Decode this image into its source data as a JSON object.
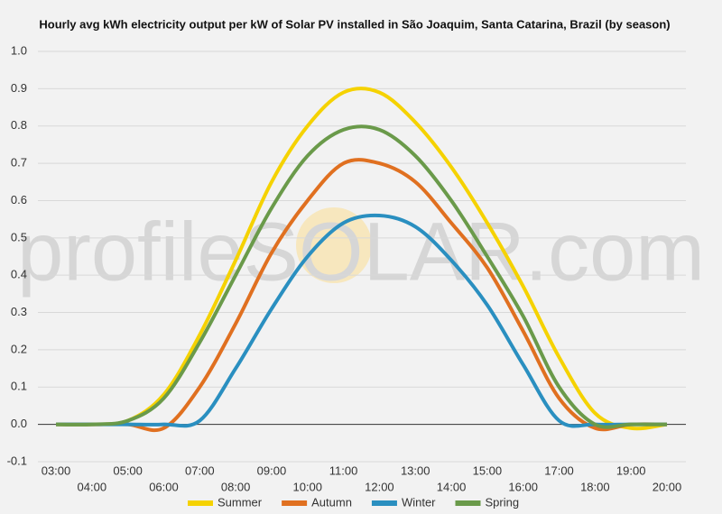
{
  "chart_data": {
    "type": "line",
    "title": "Hourly avg kWh electricity output per kW of Solar PV installed in São Joaquim, Santa Catarina, Brazil (by season)",
    "watermark": "profileSOLAR.com",
    "categories": [
      "03:00",
      "04:00",
      "05:00",
      "06:00",
      "07:00",
      "08:00",
      "09:00",
      "10:00",
      "11:00",
      "12:00",
      "13:00",
      "14:00",
      "15:00",
      "16:00",
      "17:00",
      "18:00",
      "19:00",
      "20:00"
    ],
    "series": [
      {
        "name": "Summer",
        "color": "#f5d200",
        "values": [
          0,
          0,
          0.01,
          0.08,
          0.24,
          0.44,
          0.65,
          0.8,
          0.89,
          0.89,
          0.81,
          0.69,
          0.54,
          0.37,
          0.18,
          0.03,
          -0.01,
          0
        ]
      },
      {
        "name": "Autumn",
        "color": "#e07020",
        "values": [
          0,
          0,
          0,
          -0.01,
          0.1,
          0.27,
          0.46,
          0.6,
          0.7,
          0.7,
          0.65,
          0.54,
          0.42,
          0.25,
          0.07,
          -0.01,
          0,
          0
        ]
      },
      {
        "name": "Winter",
        "color": "#2a8fc0",
        "values": [
          0,
          0,
          0,
          0,
          0.01,
          0.15,
          0.31,
          0.45,
          0.54,
          0.56,
          0.53,
          0.44,
          0.32,
          0.16,
          0.01,
          0,
          0,
          0
        ]
      },
      {
        "name": "Spring",
        "color": "#6a9a4a",
        "values": [
          0,
          0,
          0.01,
          0.07,
          0.22,
          0.4,
          0.58,
          0.72,
          0.79,
          0.79,
          0.72,
          0.6,
          0.45,
          0.29,
          0.1,
          0,
          0,
          0
        ]
      }
    ],
    "ylim": [
      -0.1,
      1.0
    ],
    "yticks": [
      {
        "value": -0.1,
        "label": "-0.1"
      },
      {
        "value": 0,
        "label": "0.0"
      },
      0.1,
      0.2,
      0.3,
      0.4,
      0.5,
      0.6,
      0.7,
      0.8,
      0.9,
      {
        "value": 1,
        "label": "1.0"
      }
    ],
    "grid": true
  }
}
